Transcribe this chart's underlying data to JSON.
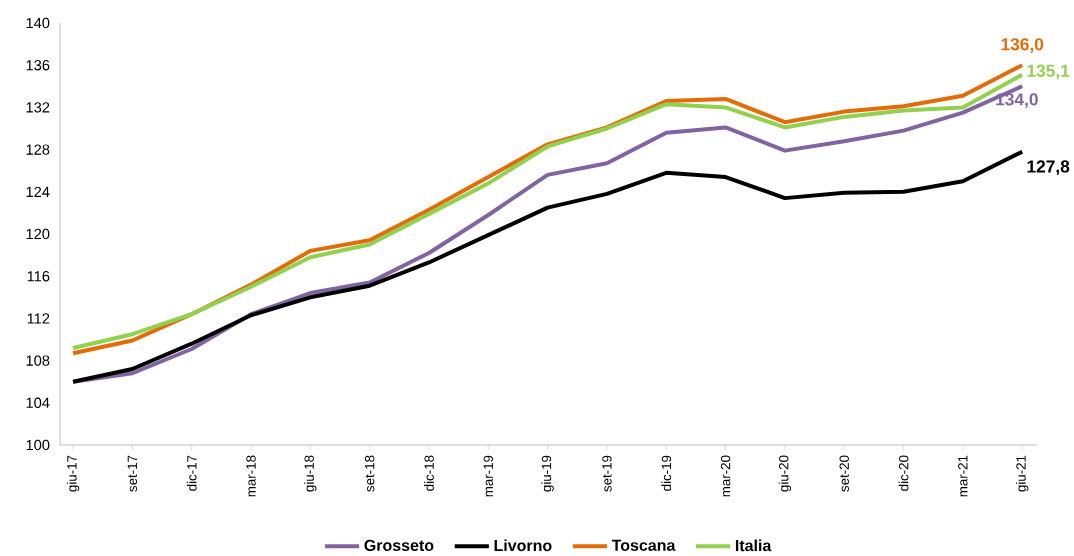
{
  "chart_data": {
    "type": "line",
    "categories": [
      "giu-17",
      "set-17",
      "dic-17",
      "mar-18",
      "giu-18",
      "set-18",
      "dic-18",
      "mar-19",
      "giu-19",
      "set-19",
      "dic-19",
      "mar-20",
      "giu-20",
      "set-20",
      "dic-20",
      "mar-21",
      "giu-21"
    ],
    "series": [
      {
        "name": "Grosseto",
        "color": "#8064a2",
        "values": [
          106.0,
          106.8,
          109.1,
          112.4,
          114.4,
          115.4,
          118.2,
          121.8,
          125.6,
          126.7,
          129.6,
          130.1,
          127.9,
          128.8,
          129.8,
          131.5,
          134.0
        ],
        "value_labels": [
          null,
          null,
          null,
          null,
          null,
          null,
          null,
          null,
          null,
          null,
          null,
          null,
          null,
          null,
          null,
          null,
          "134,0"
        ]
      },
      {
        "name": "Livorno",
        "color": "#000000",
        "values": [
          106.0,
          107.2,
          109.6,
          112.3,
          114.0,
          115.1,
          117.3,
          119.9,
          122.5,
          123.8,
          125.8,
          125.4,
          123.4,
          123.9,
          124.0,
          125.0,
          127.8
        ],
        "value_labels": [
          null,
          null,
          null,
          null,
          null,
          null,
          null,
          null,
          null,
          null,
          null,
          null,
          null,
          null,
          null,
          null,
          "127,8"
        ]
      },
      {
        "name": "Toscana",
        "color": "#e36c09",
        "values": [
          108.7,
          109.9,
          112.4,
          115.2,
          118.4,
          119.4,
          122.3,
          125.4,
          128.5,
          130.1,
          132.6,
          132.8,
          130.6,
          131.6,
          132.1,
          133.1,
          136.0
        ],
        "value_labels": [
          null,
          null,
          null,
          null,
          null,
          null,
          null,
          null,
          null,
          null,
          null,
          null,
          null,
          null,
          null,
          null,
          "136,0"
        ]
      },
      {
        "name": "Italia",
        "color": "#92d050",
        "values": [
          109.2,
          110.5,
          112.4,
          115.0,
          117.8,
          119.0,
          121.9,
          124.8,
          128.3,
          130.0,
          132.3,
          132.0,
          130.1,
          131.1,
          131.7,
          132.0,
          135.1
        ],
        "value_labels": [
          null,
          null,
          null,
          null,
          null,
          null,
          null,
          null,
          null,
          null,
          null,
          null,
          null,
          null,
          null,
          null,
          "135,1"
        ]
      }
    ],
    "ylim": [
      100,
      140
    ],
    "yticks": [
      100,
      104,
      108,
      112,
      116,
      120,
      124,
      128,
      132,
      136,
      140
    ],
    "grid": false,
    "legend": "bottom",
    "marker": "none",
    "line_style": "solid"
  }
}
